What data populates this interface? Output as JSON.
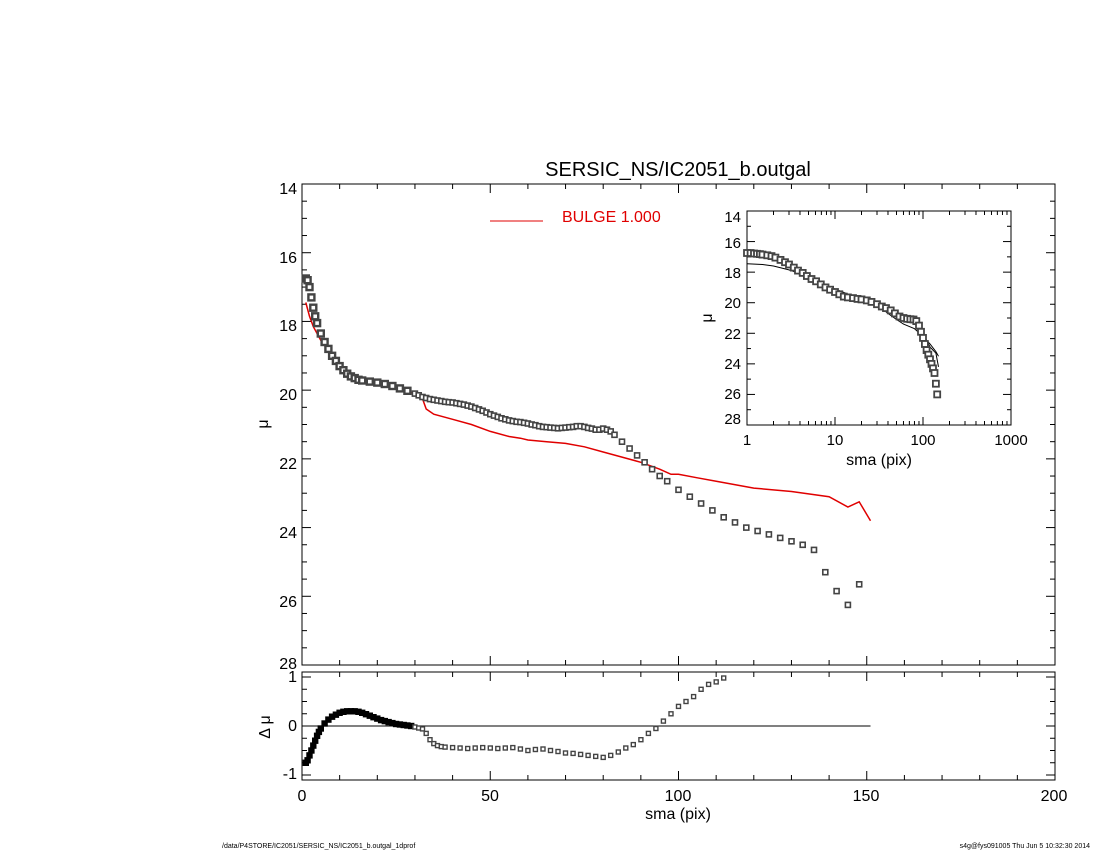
{
  "colors": {
    "model": "#e00000",
    "data": "#444444",
    "frame": "#000000"
  },
  "footer": {
    "left": "/data/P4STORE/IC2051/SERSIC_NS/IC2051_b.outgal_1dprof",
    "right": "s4g@fys091005  Thu Jun  5 10:32:30 2014"
  },
  "chart_data": [
    {
      "type": "scatter",
      "panel": "main",
      "title": "SERSIC_NS/IC2051_b.outgal",
      "xlabel": "",
      "ylabel": "μ",
      "xlim": [
        0,
        200
      ],
      "ylim": [
        28,
        14
      ],
      "yticks": [
        "14",
        "16",
        "18",
        "20",
        "22",
        "24",
        "26",
        "28"
      ],
      "legend": {
        "label": "BULGE  1.000",
        "placement": "top-center"
      },
      "series": [
        {
          "name": "BULGE  1.000",
          "kind": "line",
          "x": [
            1,
            2,
            3,
            5,
            7,
            10,
            13,
            16,
            20,
            25,
            30,
            32,
            33,
            35,
            40,
            45,
            50,
            55,
            58,
            60,
            65,
            70,
            75,
            80,
            85,
            90,
            95,
            98,
            100,
            105,
            110,
            120,
            130,
            140,
            145,
            148,
            151
          ],
          "y": [
            17.45,
            17.85,
            18.15,
            18.55,
            18.85,
            19.25,
            19.5,
            19.65,
            19.8,
            19.95,
            20.1,
            20.25,
            20.55,
            20.7,
            20.85,
            21.0,
            21.2,
            21.35,
            21.4,
            21.45,
            21.5,
            21.55,
            21.65,
            21.8,
            21.95,
            22.1,
            22.3,
            22.45,
            22.45,
            22.55,
            22.65,
            22.85,
            22.95,
            23.1,
            23.4,
            23.25,
            23.8
          ]
        },
        {
          "name": "",
          "kind": "markers",
          "x": [
            1,
            1.5,
            2,
            2.5,
            3,
            3.5,
            4,
            5,
            6,
            7,
            8,
            9,
            10,
            11,
            12,
            13,
            14,
            15,
            16,
            18,
            20,
            22,
            24,
            26,
            28,
            30,
            31,
            32,
            33,
            34,
            35,
            36,
            37,
            38,
            39,
            40,
            41,
            42,
            43,
            44,
            45,
            46,
            47,
            48,
            49,
            50,
            51,
            52,
            53,
            54,
            55,
            56,
            57,
            58,
            59,
            60,
            61,
            62,
            63,
            64,
            65,
            66,
            67,
            68,
            69,
            70,
            71,
            72,
            73,
            74,
            75,
            76,
            77,
            78,
            79,
            80,
            81,
            82,
            83,
            85,
            87,
            89,
            91,
            93,
            95,
            97,
            100,
            103,
            106,
            109,
            112,
            115,
            118,
            121,
            124,
            127,
            130,
            133,
            136,
            139,
            142,
            145,
            148
          ],
          "y": [
            16.75,
            16.8,
            17.0,
            17.3,
            17.6,
            17.85,
            18.05,
            18.35,
            18.6,
            18.8,
            19.0,
            19.15,
            19.3,
            19.42,
            19.52,
            19.6,
            19.65,
            19.7,
            19.72,
            19.75,
            19.78,
            19.82,
            19.88,
            19.95,
            20.02,
            20.1,
            20.15,
            20.2,
            20.23,
            20.26,
            20.28,
            20.3,
            20.32,
            20.34,
            20.35,
            20.36,
            20.38,
            20.4,
            20.42,
            20.45,
            20.48,
            20.52,
            20.56,
            20.6,
            20.65,
            20.7,
            20.74,
            20.78,
            20.82,
            20.85,
            20.88,
            20.9,
            20.92,
            20.93,
            20.95,
            20.97,
            21.0,
            21.02,
            21.05,
            21.07,
            21.08,
            21.09,
            21.1,
            21.11,
            21.1,
            21.09,
            21.08,
            21.07,
            21.05,
            21.05,
            21.07,
            21.1,
            21.12,
            21.15,
            21.15,
            21.12,
            21.15,
            21.2,
            21.3,
            21.5,
            21.7,
            21.9,
            22.1,
            22.3,
            22.5,
            22.65,
            22.9,
            23.1,
            23.3,
            23.5,
            23.7,
            23.85,
            24.0,
            24.1,
            24.2,
            24.3,
            24.4,
            24.5,
            24.65,
            25.3,
            25.85,
            26.25,
            25.65
          ]
        }
      ]
    },
    {
      "type": "scatter",
      "panel": "residual",
      "xlabel": "sma (pix)",
      "ylabel": "Δ μ",
      "xlim": [
        0,
        200
      ],
      "ylim": [
        -1.1,
        1.1
      ],
      "xticks": [
        "0",
        "50",
        "100",
        "150",
        "200"
      ],
      "yticks": [
        "1",
        "0",
        "-1"
      ],
      "reference_line": {
        "y": 0,
        "x_end": 151
      },
      "series": [
        {
          "name": "",
          "kind": "markers",
          "x": [
            1,
            1.5,
            2,
            2.5,
            3,
            3.5,
            4,
            4.5,
            5,
            6,
            7,
            8,
            9,
            10,
            11,
            12,
            13,
            14,
            15,
            16,
            17,
            18,
            19,
            20,
            21,
            22,
            23,
            24,
            25,
            26,
            27,
            28,
            29,
            30,
            31,
            32,
            33,
            34,
            35,
            36,
            37,
            38,
            40,
            42,
            44,
            46,
            48,
            50,
            52,
            54,
            56,
            58,
            60,
            62,
            64,
            66,
            68,
            70,
            72,
            74,
            76,
            78,
            80,
            82,
            84,
            86,
            88,
            90,
            92,
            94,
            96,
            98,
            100,
            102,
            104,
            106,
            108,
            110,
            112
          ],
          "y": [
            -0.75,
            -0.7,
            -0.6,
            -0.5,
            -0.4,
            -0.3,
            -0.2,
            -0.12,
            -0.05,
            0.05,
            0.13,
            0.19,
            0.23,
            0.27,
            0.29,
            0.3,
            0.3,
            0.3,
            0.29,
            0.27,
            0.24,
            0.21,
            0.18,
            0.15,
            0.12,
            0.1,
            0.08,
            0.06,
            0.04,
            0.03,
            0.02,
            0.01,
            0.0,
            -0.02,
            -0.04,
            -0.06,
            -0.15,
            -0.28,
            -0.36,
            -0.4,
            -0.42,
            -0.43,
            -0.44,
            -0.45,
            -0.46,
            -0.45,
            -0.44,
            -0.45,
            -0.46,
            -0.45,
            -0.44,
            -0.47,
            -0.5,
            -0.48,
            -0.47,
            -0.5,
            -0.52,
            -0.55,
            -0.56,
            -0.58,
            -0.6,
            -0.62,
            -0.64,
            -0.6,
            -0.53,
            -0.45,
            -0.38,
            -0.28,
            -0.15,
            -0.05,
            0.1,
            0.25,
            0.4,
            0.5,
            0.6,
            0.75,
            0.85,
            0.9,
            0.98
          ]
        }
      ]
    },
    {
      "type": "scatter",
      "panel": "inset",
      "xlabel": "sma (pix)",
      "ylabel": "μ",
      "xscale": "log",
      "xlim": [
        1,
        1000
      ],
      "ylim": [
        28,
        14
      ],
      "xticks": [
        "1",
        "10",
        "100",
        "1000"
      ],
      "yticks": [
        "14",
        "16",
        "18",
        "20",
        "22",
        "24",
        "26",
        "28"
      ],
      "series": [
        {
          "name": "",
          "kind": "line",
          "x": [
            1,
            1.5,
            2,
            3,
            5,
            8,
            10,
            15,
            20,
            30,
            40,
            50,
            60,
            80,
            100,
            120,
            140,
            150
          ],
          "y": [
            17.45,
            17.5,
            17.6,
            17.85,
            18.3,
            18.9,
            19.1,
            19.5,
            19.8,
            20.15,
            20.7,
            21.1,
            21.4,
            21.7,
            22.2,
            22.7,
            23.2,
            23.5
          ]
        },
        {
          "name": "",
          "kind": "line",
          "x": [
            1,
            2,
            3,
            5,
            8,
            10,
            15,
            20,
            30,
            40,
            50,
            60,
            70,
            80,
            90,
            100,
            120,
            140,
            150
          ],
          "y": [
            16.8,
            17.0,
            17.6,
            18.3,
            18.95,
            19.15,
            19.6,
            19.75,
            20.05,
            20.45,
            20.9,
            21.05,
            21.1,
            21.15,
            21.5,
            22.0,
            22.9,
            23.3,
            24.2
          ]
        },
        {
          "name": "",
          "kind": "markers",
          "x": [
            1.0,
            1.1,
            1.2,
            1.3,
            1.4,
            1.5,
            1.7,
            1.9,
            2.1,
            2.4,
            2.7,
            3.0,
            3.4,
            3.8,
            4.3,
            4.8,
            5.4,
            6.1,
            6.9,
            7.8,
            8.8,
            10,
            11.2,
            12.6,
            14,
            16,
            18,
            20,
            23,
            26,
            30,
            34,
            38,
            43,
            48,
            54,
            60,
            66,
            72,
            78,
            84,
            90,
            95,
            100,
            105,
            110,
            115,
            120,
            125,
            130,
            135,
            140,
            145
          ],
          "y": [
            16.75,
            16.75,
            16.78,
            16.8,
            16.82,
            16.85,
            16.9,
            16.95,
            17.05,
            17.2,
            17.35,
            17.5,
            17.7,
            17.9,
            18.05,
            18.25,
            18.45,
            18.6,
            18.8,
            19.0,
            19.15,
            19.3,
            19.45,
            19.6,
            19.65,
            19.7,
            19.75,
            19.78,
            19.85,
            19.95,
            20.1,
            20.25,
            20.35,
            20.5,
            20.7,
            20.9,
            21.0,
            21.05,
            21.08,
            21.1,
            21.2,
            21.5,
            21.9,
            22.3,
            22.7,
            23.1,
            23.4,
            23.7,
            24.0,
            24.3,
            24.6,
            25.3,
            26.0
          ]
        }
      ]
    }
  ]
}
